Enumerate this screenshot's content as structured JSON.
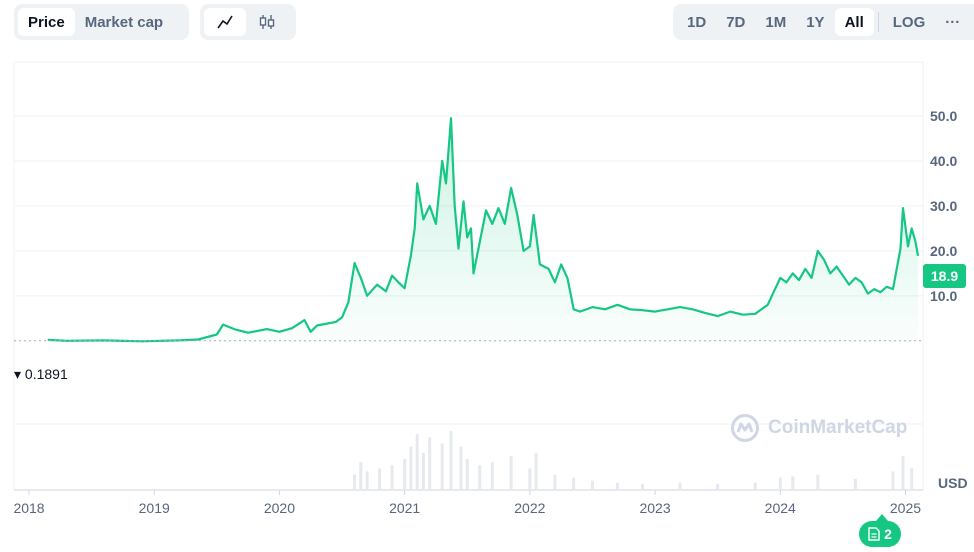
{
  "toolbar": {
    "price_tabs": [
      {
        "label": "Price",
        "active": true
      },
      {
        "label": "Market cap",
        "active": false
      }
    ],
    "chart_types": [
      {
        "icon": "line-chart-icon",
        "active": true
      },
      {
        "icon": "candlestick-icon",
        "active": false
      }
    ],
    "ranges": [
      {
        "label": "1D",
        "active": false
      },
      {
        "label": "7D",
        "active": false
      },
      {
        "label": "1M",
        "active": false
      },
      {
        "label": "1Y",
        "active": false
      },
      {
        "label": "All",
        "active": true
      }
    ],
    "log_label": "LOG",
    "more_label": "···"
  },
  "watermark": "CoinMarketCap",
  "currency": "USD",
  "current_price": "18.9",
  "start_price": "0.1891",
  "news_count": "2",
  "colors": {
    "line": "#16c784",
    "grid": "#eff2f5",
    "text": "#58667e"
  },
  "chart_data": {
    "type": "area",
    "title": "",
    "xlabel": "",
    "ylabel": "",
    "y_ticks": [
      "10.0",
      "20.0",
      "30.0",
      "40.0",
      "50.0"
    ],
    "x_ticks": [
      "2018",
      "2019",
      "2020",
      "2021",
      "2022",
      "2023",
      "2024",
      "2025"
    ],
    "xlim": [
      2017.88,
      2025.14
    ],
    "ylim": [
      -18.5,
      62
    ],
    "grid": true,
    "series": [
      {
        "values": [
          [
            2018.15,
            0.2
          ],
          [
            2018.3,
            0.0
          ],
          [
            2018.6,
            0.1
          ],
          [
            2018.9,
            -0.1
          ],
          [
            2019.2,
            0.1
          ],
          [
            2019.35,
            0.3
          ],
          [
            2019.5,
            1.4
          ],
          [
            2019.55,
            3.6
          ],
          [
            2019.65,
            2.5
          ],
          [
            2019.75,
            1.8
          ],
          [
            2019.9,
            2.6
          ],
          [
            2020.0,
            2.0
          ],
          [
            2020.1,
            2.8
          ],
          [
            2020.2,
            4.6
          ],
          [
            2020.25,
            2.0
          ],
          [
            2020.3,
            3.4
          ],
          [
            2020.45,
            4.2
          ],
          [
            2020.5,
            5.2
          ],
          [
            2020.55,
            8.5
          ],
          [
            2020.6,
            17.3
          ],
          [
            2020.65,
            14.0
          ],
          [
            2020.7,
            10.0
          ],
          [
            2020.78,
            12.5
          ],
          [
            2020.85,
            11.0
          ],
          [
            2020.9,
            14.5
          ],
          [
            2020.95,
            13.0
          ],
          [
            2021.0,
            11.7
          ],
          [
            2021.05,
            19.0
          ],
          [
            2021.08,
            25.0
          ],
          [
            2021.1,
            35.0
          ],
          [
            2021.15,
            27.0
          ],
          [
            2021.2,
            30.0
          ],
          [
            2021.25,
            26.0
          ],
          [
            2021.3,
            40.0
          ],
          [
            2021.33,
            35.0
          ],
          [
            2021.37,
            49.5
          ],
          [
            2021.4,
            30.0
          ],
          [
            2021.43,
            20.5
          ],
          [
            2021.47,
            31.0
          ],
          [
            2021.5,
            23.0
          ],
          [
            2021.53,
            25.0
          ],
          [
            2021.55,
            15.0
          ],
          [
            2021.6,
            22.0
          ],
          [
            2021.65,
            29.0
          ],
          [
            2021.7,
            26.0
          ],
          [
            2021.75,
            29.5
          ],
          [
            2021.8,
            26.0
          ],
          [
            2021.85,
            34.0
          ],
          [
            2021.9,
            28.0
          ],
          [
            2021.95,
            20.0
          ],
          [
            2022.0,
            21.0
          ],
          [
            2022.03,
            28.0
          ],
          [
            2022.08,
            17.0
          ],
          [
            2022.15,
            16.0
          ],
          [
            2022.2,
            13.0
          ],
          [
            2022.25,
            17.0
          ],
          [
            2022.3,
            14.0
          ],
          [
            2022.35,
            7.0
          ],
          [
            2022.4,
            6.5
          ],
          [
            2022.5,
            7.5
          ],
          [
            2022.6,
            7.0
          ],
          [
            2022.7,
            8.0
          ],
          [
            2022.8,
            7.0
          ],
          [
            2022.9,
            6.8
          ],
          [
            2023.0,
            6.5
          ],
          [
            2023.1,
            7.0
          ],
          [
            2023.2,
            7.5
          ],
          [
            2023.3,
            7.0
          ],
          [
            2023.4,
            6.2
          ],
          [
            2023.5,
            5.5
          ],
          [
            2023.6,
            6.5
          ],
          [
            2023.7,
            5.8
          ],
          [
            2023.8,
            6.0
          ],
          [
            2023.9,
            8.0
          ],
          [
            2023.95,
            11.0
          ],
          [
            2024.0,
            14.0
          ],
          [
            2024.05,
            13.0
          ],
          [
            2024.1,
            15.0
          ],
          [
            2024.15,
            13.5
          ],
          [
            2024.2,
            16.0
          ],
          [
            2024.25,
            14.0
          ],
          [
            2024.3,
            20.0
          ],
          [
            2024.35,
            18.0
          ],
          [
            2024.4,
            15.0
          ],
          [
            2024.45,
            16.5
          ],
          [
            2024.5,
            14.5
          ],
          [
            2024.55,
            12.5
          ],
          [
            2024.6,
            14.0
          ],
          [
            2024.65,
            13.0
          ],
          [
            2024.7,
            10.5
          ],
          [
            2024.75,
            11.5
          ],
          [
            2024.8,
            10.8
          ],
          [
            2024.85,
            12.0
          ],
          [
            2024.9,
            11.5
          ],
          [
            2024.93,
            16.0
          ],
          [
            2024.96,
            20.5
          ],
          [
            2024.98,
            29.5
          ],
          [
            2025.02,
            21.0
          ],
          [
            2025.05,
            25.0
          ],
          [
            2025.08,
            22.0
          ],
          [
            2025.1,
            18.9
          ]
        ]
      }
    ],
    "volume": [
      [
        2020.6,
        0.25
      ],
      [
        2020.65,
        0.45
      ],
      [
        2020.7,
        0.3
      ],
      [
        2020.8,
        0.35
      ],
      [
        2020.9,
        0.4
      ],
      [
        2021.0,
        0.5
      ],
      [
        2021.05,
        0.7
      ],
      [
        2021.1,
        0.9
      ],
      [
        2021.15,
        0.6
      ],
      [
        2021.2,
        0.85
      ],
      [
        2021.3,
        0.75
      ],
      [
        2021.37,
        0.95
      ],
      [
        2021.45,
        0.7
      ],
      [
        2021.5,
        0.5
      ],
      [
        2021.6,
        0.4
      ],
      [
        2021.7,
        0.45
      ],
      [
        2021.85,
        0.55
      ],
      [
        2022.0,
        0.35
      ],
      [
        2022.05,
        0.6
      ],
      [
        2022.2,
        0.25
      ],
      [
        2022.35,
        0.2
      ],
      [
        2022.5,
        0.15
      ],
      [
        2022.7,
        0.12
      ],
      [
        2022.9,
        0.1
      ],
      [
        2023.2,
        0.12
      ],
      [
        2023.5,
        0.1
      ],
      [
        2023.8,
        0.12
      ],
      [
        2024.0,
        0.2
      ],
      [
        2024.1,
        0.22
      ],
      [
        2024.3,
        0.25
      ],
      [
        2024.6,
        0.18
      ],
      [
        2024.9,
        0.3
      ],
      [
        2024.98,
        0.55
      ],
      [
        2025.05,
        0.35
      ]
    ]
  }
}
